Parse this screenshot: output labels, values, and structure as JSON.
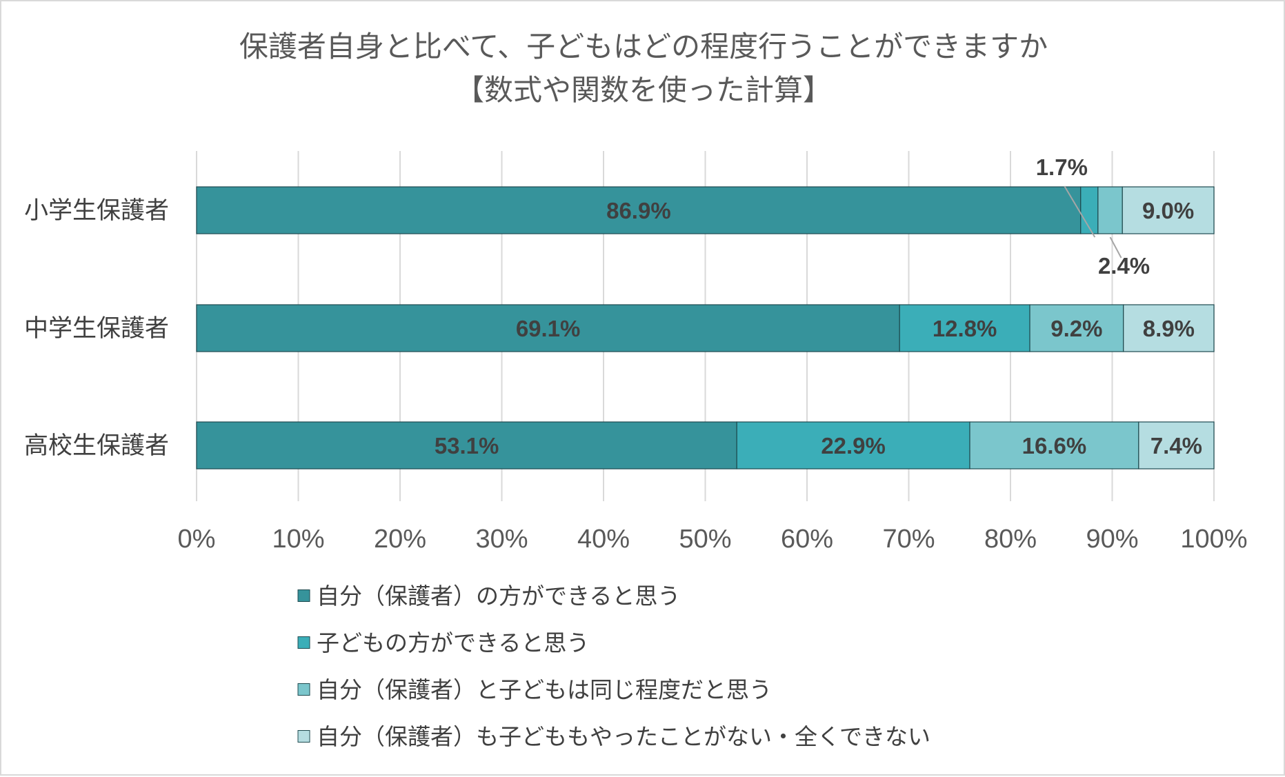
{
  "chart_data": {
    "type": "bar",
    "orientation": "horizontal",
    "stacked": true,
    "title_line1": "保護者自身と比べて、子どもはどの程度行うことができますか",
    "title_line2": "【数式や関数を使った計算】",
    "categories": [
      "小学生保護者",
      "中学生保護者",
      "高校生保護者"
    ],
    "series": [
      {
        "name": "自分（保護者）の方ができると思う",
        "color": "#36939b",
        "values": [
          86.9,
          69.1,
          53.1
        ]
      },
      {
        "name": "子どもの方ができると思う",
        "color": "#3baeb8",
        "values": [
          1.7,
          12.8,
          22.9
        ]
      },
      {
        "name": "自分（保護者）と子どもは同じ程度だと思う",
        "color": "#7bc6cc",
        "values": [
          2.4,
          9.2,
          16.6
        ]
      },
      {
        "name": "自分（保護者）も子どももやったことがない・全くできない",
        "color": "#b5dde1",
        "values": [
          9.0,
          8.9,
          7.4
        ]
      }
    ],
    "data_labels": [
      [
        "86.9%",
        "1.7%",
        "2.4%",
        "9.0%"
      ],
      [
        "69.1%",
        "12.8%",
        "9.2%",
        "8.9%"
      ],
      [
        "53.1%",
        "22.9%",
        "16.6%",
        "7.4%"
      ]
    ],
    "xlim": [
      0,
      100
    ],
    "x_ticks": [
      "0%",
      "10%",
      "20%",
      "30%",
      "40%",
      "50%",
      "60%",
      "70%",
      "80%",
      "90%",
      "100%"
    ],
    "grid": true,
    "legend_position": "bottom"
  }
}
